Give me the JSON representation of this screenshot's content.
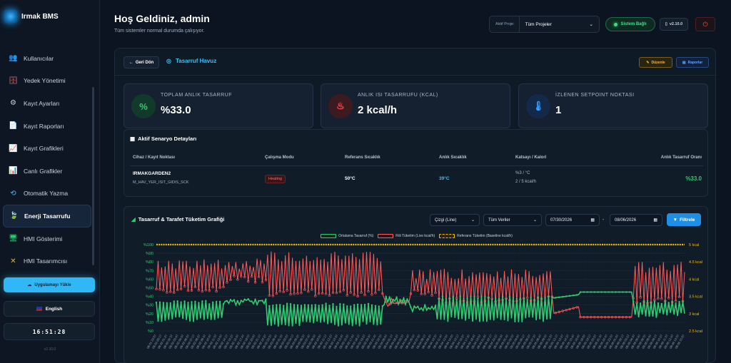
{
  "brand": {
    "name": "Irmak BMS"
  },
  "sidebar": {
    "items": [
      {
        "label": "Kullanıcılar",
        "icon": "users-icon"
      },
      {
        "label": "Yedek Yönetimi",
        "icon": "database-icon"
      },
      {
        "label": "Kayıt Ayarları",
        "icon": "gears-icon"
      },
      {
        "label": "Kayıt Raporları",
        "icon": "file-icon"
      },
      {
        "label": "Kayıt Grafikleri",
        "icon": "line-chart-icon"
      },
      {
        "label": "Canlı Grafikler",
        "icon": "bar-chart-icon"
      },
      {
        "label": "Otomatik Yazma",
        "icon": "history-icon"
      },
      {
        "label": "Enerji Tasarrufu",
        "icon": "leaf-icon",
        "active": true
      },
      {
        "label": "HMI Gösterimi",
        "icon": "monitor-icon"
      },
      {
        "label": "HMI Tasarımcısı",
        "icon": "tools-icon"
      }
    ],
    "upload_label": "Uygulamayı Yükle",
    "language_label": "English",
    "clock": "16:51:28",
    "version": "v2.10.0"
  },
  "header": {
    "welcome": "Hoş Geldiniz, admin",
    "subtitle": "Tüm sistemler normal durumda çalışıyor.",
    "project_label": "Aktif Proje:",
    "project_value": "Tüm Projeler",
    "status": "Sistem Bağlı",
    "version": "v2.10.0"
  },
  "page": {
    "back_label": "Geri Dön",
    "title": "Tasarruf Havuz",
    "edit_label": "Düzenle",
    "report_label": "Raporlar"
  },
  "stats": [
    {
      "label": "TOPLAM ANLIK TASARRUF",
      "value": "%33.0",
      "icon": "percent-icon",
      "color": "#2ecc71"
    },
    {
      "label": "ANLIK ISI TASARRUFU (KCAL)",
      "value": "2 kcal/h",
      "icon": "flame-icon",
      "color": "#ff4d4f"
    },
    {
      "label": "İZLENEN SETPOINT NOKTASI",
      "value": "1",
      "icon": "thermometer-icon",
      "color": "#3aa0ff"
    }
  ],
  "scenario": {
    "title": "Aktif Senaryo Detayları",
    "headers": [
      "Cihaz / Kayıt Noktası",
      "Çalışma Modu",
      "Referans Sıcaklık",
      "Anlık Sıcaklık",
      "Katsayı / Kalori",
      "Anlık Tasarruf Oranı"
    ],
    "row": {
      "device": "IRMAKGARDEN2",
      "point": "M_HAV_YER_ISIT_GIDIS_SCK",
      "mode": "Heating",
      "ref_temp": "50°C",
      "cur_temp": "39°C",
      "coef": "%3 / °C",
      "kcal": "2 / 5 kcal/h",
      "rate": "%33.0"
    }
  },
  "chart_panel": {
    "title": "Tasarruf & Tarafet Tüketim Grafiği",
    "chart_type": "Çizgi (Line)",
    "data_filter": "Tüm Veriler",
    "date_from": "07/30/2026",
    "date_to": "08/06/2026",
    "dash": "-",
    "filter_label": "Filtrele"
  },
  "chart_data": {
    "type": "line",
    "legend": [
      "Ortalama Tasarruf (%)",
      "Fiili Tüketim (Live kcal/h)",
      "Referans Tüketim (Baseline kcal/h)"
    ],
    "y_left_ticks": [
      "%0",
      "%10",
      "%20",
      "%30",
      "%40",
      "%50",
      "%60",
      "%70",
      "%80",
      "%90",
      "%100"
    ],
    "y_right_ticks": [
      "2.5 kcal",
      "3 kcal",
      "3.5 kcal",
      "4 kcal",
      "4.5 kcal",
      "5 kcal"
    ],
    "ylim_left": [
      0,
      100
    ],
    "ylim_right": [
      2.5,
      5
    ],
    "x_range": [
      "08-01 23:07",
      "08-06 15:24"
    ],
    "x_tick_labels": [
      "08-01 23:07",
      "08-02 00:17",
      "08-02 01:27",
      "08-02 02:37",
      "08-02 03:47",
      "08-02 04:57",
      "08-02 06:07",
      "08-02 07:17",
      "08-02 08:27",
      "08-02 09:37",
      "08-02 10:47",
      "08-02 11:57",
      "08-02 13:07",
      "08-02 14:17",
      "08-02 15:27",
      "08-02 16:37",
      "08-02 17:47",
      "08-02 18:57",
      "08-02 20:07",
      "08-02 21:17",
      "08-02 22:27",
      "08-02 23:37",
      "08-03 00:47",
      "08-03 01:57",
      "08-03 03:07",
      "08-03 04:17",
      "08-03 05:27",
      "08-03 06:37",
      "08-03 07:47",
      "08-03 08:57",
      "08-03 10:07",
      "08-03 11:17",
      "08-03 12:27",
      "08-03 13:37",
      "08-03 14:47",
      "08-03 15:57",
      "08-03 17:07",
      "08-03 18:17",
      "08-03 19:27",
      "08-03 20:37",
      "08-03 21:47",
      "08-03 22:57",
      "08-04 00:07",
      "08-04 01:17",
      "08-04 02:27",
      "08-04 03:37",
      "08-04 04:47",
      "08-04 05:57",
      "08-04 07:07",
      "08-04 08:17",
      "08-04 09:27",
      "08-04 10:37",
      "08-04 11:47",
      "08-04 12:57",
      "08-04 14:07",
      "08-04 15:17",
      "08-04 16:27",
      "08-04 17:37",
      "08-04 18:47",
      "08-04 19:57",
      "08-04 21:07",
      "08-04 22:17",
      "08-04 23:27",
      "08-05 00:37",
      "08-05 01:47",
      "08-05 02:57",
      "08-05 04:07",
      "08-05 05:17",
      "08-05 06:27",
      "08-05 07:37",
      "08-05 08:47",
      "08-05 09:57",
      "08-05 11:07",
      "08-05 12:17",
      "08-05 13:27",
      "08-05 14:37",
      "08-05 15:47",
      "08-05 16:57",
      "08-05 18:07",
      "08-05 19:17",
      "08-05 20:27",
      "08-05 21:37",
      "08-05 22:47",
      "08-05 23:57",
      "08-06 01:07",
      "08-06 02:17",
      "08-06 03:27",
      "08-06 04:37",
      "08-06 05:47",
      "08-06 06:57",
      "08-06 08:07",
      "08-06 09:17",
      "08-06 10:27",
      "08-06 11:37",
      "08-06 12:47",
      "08-06 13:57",
      "08-06 15:07"
    ],
    "baseline_kcal": 5,
    "segments": [
      {
        "from": 0.0,
        "to": 0.13,
        "savings_pct": [
          10,
          35
        ],
        "live_kcal": [
          3.6,
          4.6
        ],
        "mode": "oscillating"
      },
      {
        "from": 0.13,
        "to": 0.21,
        "savings_pct": [
          30,
          37
        ],
        "live_kcal": [
          3.9,
          4.6
        ],
        "mode": "oscillating"
      },
      {
        "from": 0.21,
        "to": 0.43,
        "savings_pct": [
          5,
          32
        ],
        "live_kcal": [
          3.5,
          4.8
        ],
        "mode": "oscillating"
      },
      {
        "from": 0.43,
        "to": 0.48,
        "savings_pct": [
          30,
          40
        ],
        "live_kcal": [
          3.2,
          3.5
        ],
        "mode": "oscillating"
      },
      {
        "from": 0.48,
        "to": 0.53,
        "savings_pct": [
          22,
          30
        ],
        "live_kcal": [
          3.5,
          4.3
        ],
        "mode": "oscillating"
      },
      {
        "from": 0.53,
        "to": 0.75,
        "savings_pct": [
          10,
          40
        ],
        "live_kcal": [
          3.3,
          4.3
        ],
        "mode": "oscillating"
      },
      {
        "from": 0.75,
        "to": 0.8,
        "savings_pct": [
          38,
          42
        ],
        "live_kcal": [
          3.0,
          3.2
        ],
        "mode": "flat"
      },
      {
        "from": 0.8,
        "to": 0.9,
        "savings_pct": [
          45,
          45
        ],
        "live_kcal": [
          2.9,
          2.9
        ],
        "mode": "flat"
      },
      {
        "from": 0.9,
        "to": 1.0,
        "savings_pct": [
          15,
          35
        ],
        "live_kcal": [
          3.3,
          4.5
        ],
        "mode": "oscillating"
      }
    ],
    "colors": {
      "savings": "#2ecc71",
      "live": "#ff5a5a",
      "baseline": "#f5b800"
    }
  }
}
